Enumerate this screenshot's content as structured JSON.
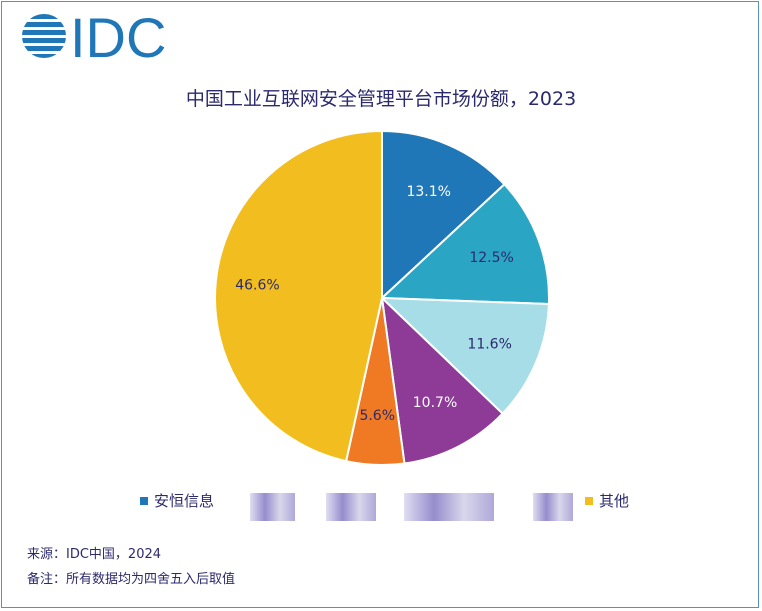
{
  "logo_text": "IDC",
  "chart_data": {
    "type": "pie",
    "title": "中国工业互联网安全管理平台市场份额，2023",
    "start": "top",
    "direction": "clockwise",
    "slices": [
      {
        "value": 13.1,
        "label": "13.1%",
        "color": "#1f77b8",
        "label_color": "#ffffff",
        "name": "安恒信息"
      },
      {
        "value": 12.5,
        "label": "12.5%",
        "color": "#2aa6c4",
        "label_color": "#2b2a6e"
      },
      {
        "value": 11.6,
        "label": "11.6%",
        "color": "#a6dde7",
        "label_color": "#2b2a6e"
      },
      {
        "value": 10.7,
        "label": "10.7%",
        "color": "#8d3b96",
        "label_color": "#ffffff"
      },
      {
        "value": 5.6,
        "label": "5.6%",
        "color": "#f07a23",
        "label_color": "#2b2a6e"
      },
      {
        "value": 46.6,
        "label": "46.6%",
        "color": "#f2be1f",
        "label_color": "#2b2a6e",
        "name": "其他"
      }
    ],
    "legend": [
      {
        "name": "安恒信息",
        "color": "#1f77b8"
      },
      {
        "name": "其他",
        "color": "#f2be1f"
      }
    ],
    "legend_placement": "bottom"
  },
  "footer": {
    "source": "来源：IDC中国，2024",
    "note": "备注：所有数据均为四舍五入后取值"
  }
}
